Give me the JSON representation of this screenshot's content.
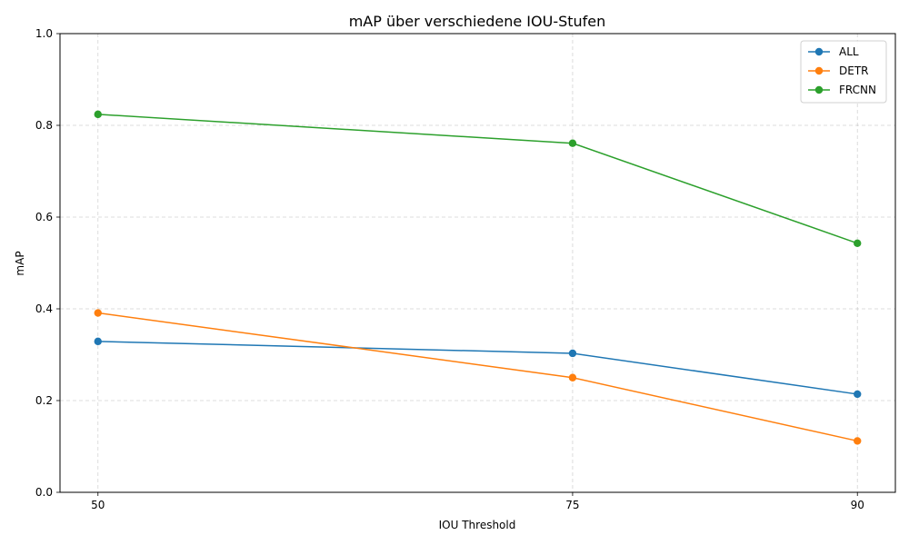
{
  "chart_data": {
    "type": "line",
    "title": "mAP über verschiedene IOU-Stufen",
    "xlabel": "IOU Threshold",
    "ylabel": "mAP",
    "x": [
      50,
      75,
      90
    ],
    "x_tick_labels": [
      "50",
      "75",
      "90"
    ],
    "xlim": [
      48,
      92
    ],
    "ylim": [
      0,
      1
    ],
    "y_ticks": [
      0,
      0.2,
      0.4,
      0.6,
      0.8,
      1.0
    ],
    "y_tick_labels": [
      "0.0",
      "0.2",
      "0.4",
      "0.6",
      "0.8",
      "1.0"
    ],
    "grid": true,
    "legend_position": "top-right",
    "marker": "circle",
    "series": [
      {
        "name": "ALL",
        "color": "#1f77b4",
        "values": [
          0.329,
          0.303,
          0.214
        ]
      },
      {
        "name": "DETR",
        "color": "#ff7f0e",
        "values": [
          0.391,
          0.25,
          0.112
        ]
      },
      {
        "name": "FRCNN",
        "color": "#2ca02c",
        "values": [
          0.824,
          0.761,
          0.543
        ]
      }
    ]
  }
}
